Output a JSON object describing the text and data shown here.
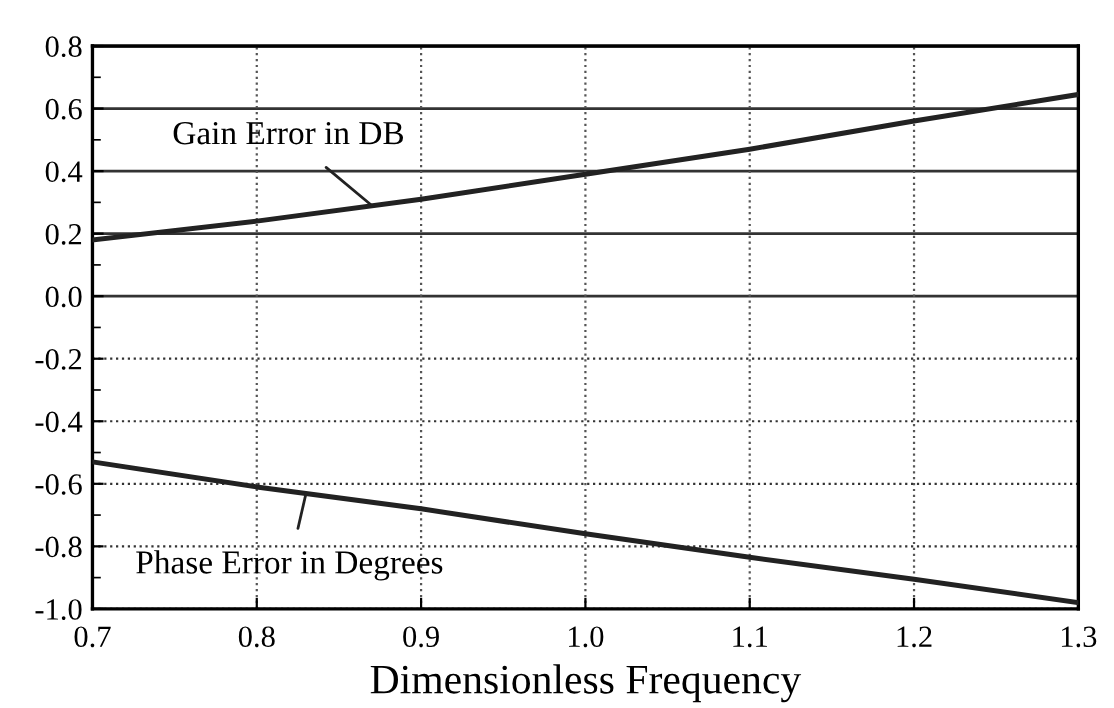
{
  "chart_data": {
    "type": "line",
    "xlabel": "Dimensionless Frequency",
    "x": [
      0.7,
      0.8,
      0.9,
      1.0,
      1.1,
      1.2,
      1.3
    ],
    "series": [
      {
        "color": "#222222",
        "values": [
          0.18,
          0.24,
          0.31,
          0.39,
          0.47,
          0.56,
          0.645
        ]
      },
      {
        "color": "#222222",
        "values": [
          -0.53,
          -0.61,
          -0.68,
          -0.76,
          -0.835,
          -0.905,
          -0.98
        ]
      }
    ],
    "xlim": [
      0.7,
      1.3
    ],
    "xticks": [
      0.7,
      0.8,
      0.9,
      {
        "value": 1,
        "label": "1.0"
      },
      1.1,
      1.2,
      1.3
    ],
    "ylim": [
      -1.0,
      0.8
    ],
    "yticks": [
      {
        "value": -1,
        "label": "-1.0"
      },
      -0.8,
      -0.6,
      -0.4,
      -0.2,
      {
        "value": 0,
        "label": "0.0"
      },
      0.2,
      0.4,
      0.6,
      0.8
    ],
    "grid": true,
    "line_style": "solid",
    "marker": "none",
    "annotations": [
      {
        "text": "Gain Error in DB",
        "x": 0.87,
        "y": 0.29
      },
      {
        "text": "Phase Error in Degrees",
        "x": 0.83,
        "y": -0.63
      }
    ]
  }
}
